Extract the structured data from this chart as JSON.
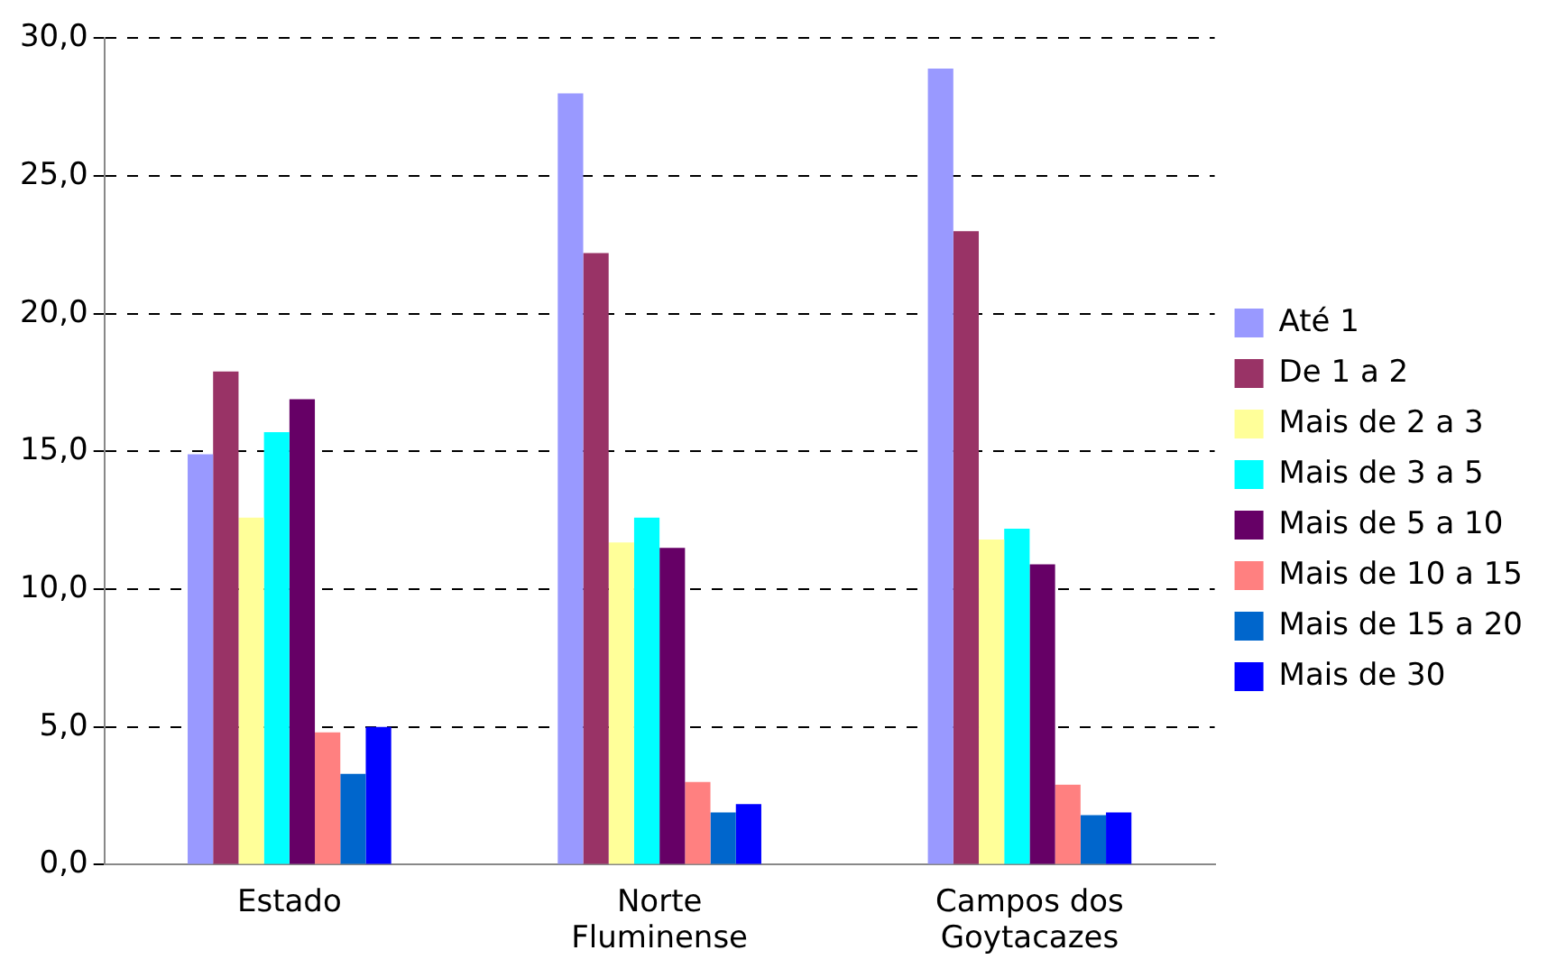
{
  "chart_data": {
    "type": "bar",
    "categories": [
      "Estado",
      "Norte Fluminense",
      "Campos dos Goytacazes"
    ],
    "series": [
      {
        "name": "Até 1",
        "color": "#9999ff",
        "values": [
          14.9,
          28.0,
          28.9
        ]
      },
      {
        "name": "De 1 a 2",
        "color": "#993366",
        "values": [
          17.9,
          22.2,
          23.0
        ]
      },
      {
        "name": "Mais de 2 a 3",
        "color": "#ffff99",
        "values": [
          12.6,
          11.7,
          11.8
        ]
      },
      {
        "name": "Mais de 3 a 5",
        "color": "#00ffff",
        "values": [
          15.7,
          12.6,
          12.2
        ]
      },
      {
        "name": "Mais de 5 a 10",
        "color": "#660066",
        "values": [
          16.9,
          11.5,
          10.9
        ]
      },
      {
        "name": "Mais de 10 a 15",
        "color": "#ff8080",
        "values": [
          4.8,
          3.0,
          2.9
        ]
      },
      {
        "name": "Mais de 15 a 20",
        "color": "#0066cc",
        "values": [
          3.3,
          1.9,
          1.8
        ]
      },
      {
        "name": "Mais de 30",
        "color": "#0000ff",
        "values": [
          5.0,
          2.2,
          1.9
        ]
      }
    ],
    "ylim": [
      0,
      30
    ],
    "yticks": [
      {
        "value": 0,
        "label": "0,0"
      },
      {
        "value": 5,
        "label": "5,0"
      },
      {
        "value": 10,
        "label": "10,0"
      },
      {
        "value": 15,
        "label": "15,0"
      },
      {
        "value": 20,
        "label": "20,0"
      },
      {
        "value": 25,
        "label": "25,0"
      },
      {
        "value": 30,
        "label": "30,0"
      }
    ],
    "grid": "y",
    "legend": "right"
  }
}
